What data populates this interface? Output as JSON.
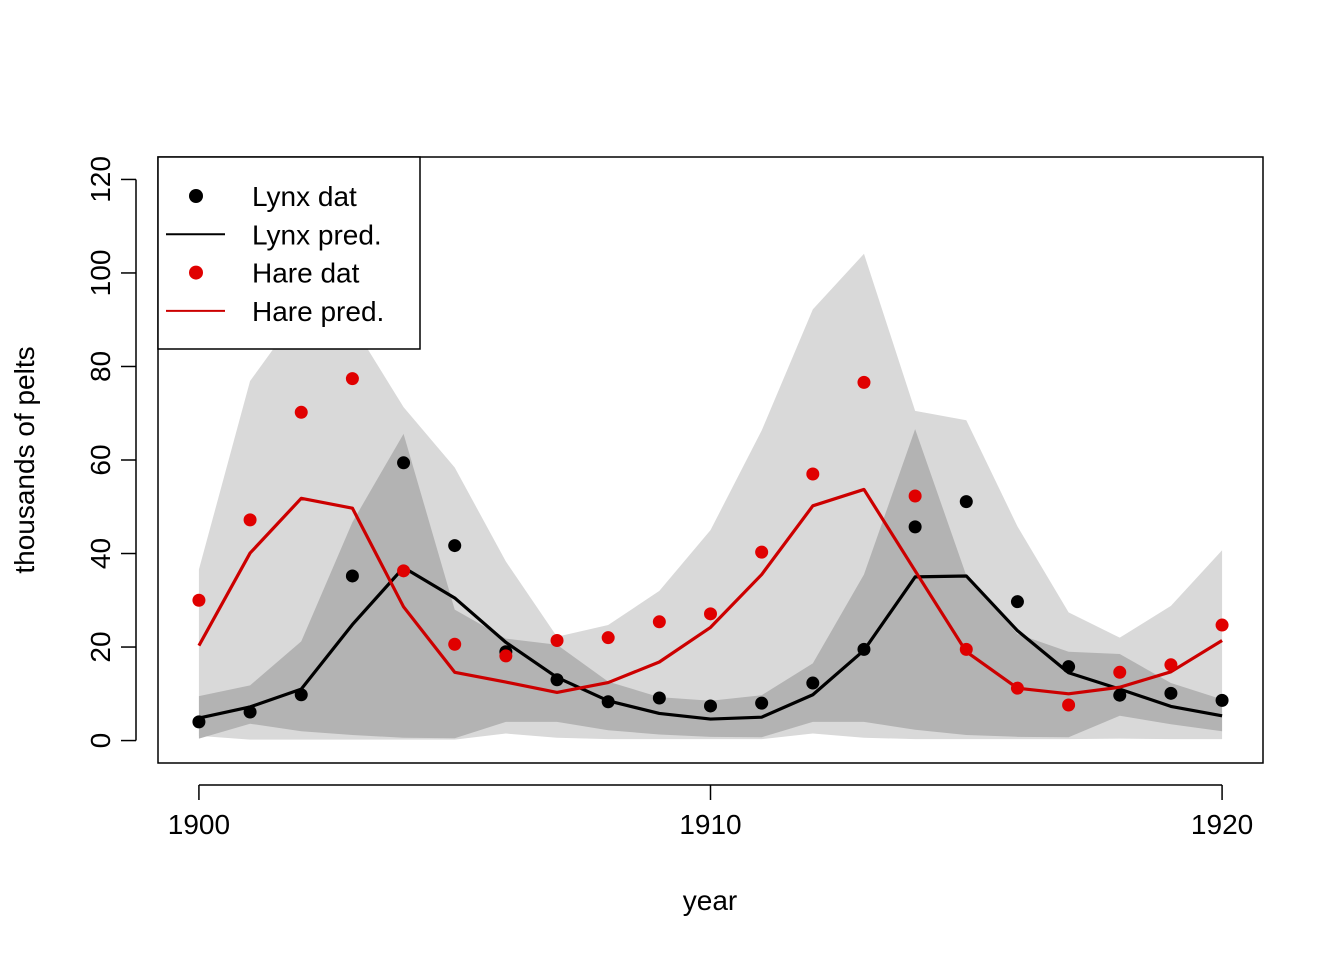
{
  "chart_data": {
    "type": "line",
    "title": "",
    "xlabel": "year",
    "ylabel": "thousands of pelts",
    "xlim": [
      1899.2,
      1920.8
    ],
    "ylim": [
      -4.8,
      124.8
    ],
    "x_ticks": [
      1900,
      1910,
      1920
    ],
    "y_ticks": [
      0,
      20,
      40,
      60,
      80,
      100,
      120
    ],
    "grid": false,
    "legend_position": "top-left",
    "colors": {
      "lynx": "#000000",
      "hare": "#cc0000",
      "band_light": "#d9d9d9",
      "band_dark": "#b3b3b3"
    },
    "x": [
      1900,
      1901,
      1902,
      1903,
      1904,
      1905,
      1906,
      1907,
      1908,
      1909,
      1910,
      1911,
      1912,
      1913,
      1914,
      1915,
      1916,
      1917,
      1918,
      1919,
      1920
    ],
    "series": [
      {
        "name": "Lynx dat",
        "kind": "points",
        "color": "#000000",
        "values": [
          4.0,
          6.1,
          9.8,
          35.2,
          59.4,
          41.7,
          19.0,
          13.0,
          8.3,
          9.1,
          7.4,
          8.0,
          12.3,
          19.5,
          45.7,
          51.1,
          29.7,
          15.8,
          9.7,
          10.1,
          8.6
        ]
      },
      {
        "name": "Lynx pred.",
        "kind": "line",
        "color": "#000000",
        "values": [
          4.8,
          7.2,
          11.0,
          24.8,
          37.0,
          30.5,
          21.0,
          13.5,
          8.5,
          5.8,
          4.6,
          5.0,
          9.8,
          19.3,
          35.0,
          35.2,
          23.5,
          14.5,
          11.0,
          7.3,
          5.3
        ]
      },
      {
        "name": "Hare dat",
        "kind": "points",
        "color": "#e00000",
        "values": [
          30.0,
          47.2,
          70.2,
          77.4,
          36.3,
          20.6,
          18.1,
          21.4,
          22.0,
          25.4,
          27.1,
          40.3,
          57.0,
          76.6,
          52.3,
          19.5,
          11.2,
          7.6,
          14.6,
          16.2,
          24.7
        ]
      },
      {
        "name": "Hare pred.",
        "kind": "line",
        "color": "#cc0000",
        "values": [
          20.3,
          40.1,
          51.8,
          49.7,
          28.6,
          14.6,
          12.5,
          10.3,
          12.4,
          16.8,
          24.2,
          35.5,
          50.2,
          53.7,
          36.3,
          19.0,
          11.2,
          10.0,
          11.4,
          14.7,
          21.4
        ]
      }
    ],
    "bands": [
      {
        "series": "Lynx pred.",
        "color": "#b3b3b3",
        "lower": [
          0.4,
          3.6,
          2.0,
          1.2,
          0.6,
          0.5,
          4.0,
          4.0,
          2.2,
          1.3,
          0.8,
          0.7,
          4.0,
          4.0,
          2.3,
          1.2,
          0.8,
          0.7,
          5.3,
          3.5,
          2.0
        ],
        "upper": [
          9.5,
          11.8,
          21.2,
          46.7,
          65.6,
          28.0,
          21.8,
          20.5,
          12.6,
          9.3,
          8.5,
          9.7,
          16.5,
          35.5,
          66.6,
          35.3,
          22.8,
          19.0,
          18.5,
          12.3,
          8.8
        ]
      },
      {
        "series": "Hare pred.",
        "color": "#d9d9d9",
        "lower": [
          1.0,
          0.2,
          0.2,
          0.2,
          0.2,
          0.2,
          1.5,
          0.6,
          0.3,
          0.3,
          0.3,
          0.3,
          1.5,
          0.6,
          0.3,
          0.3,
          0.3,
          0.3,
          0.4,
          0.3,
          0.3
        ],
        "upper": [
          36.6,
          76.9,
          92.0,
          89.0,
          71.3,
          58.4,
          38.3,
          22.2,
          24.7,
          32.0,
          45.0,
          66.3,
          92.2,
          104.1,
          70.5,
          68.5,
          45.8,
          27.4,
          22.0,
          28.8,
          40.7
        ]
      }
    ],
    "legend": [
      {
        "label": "Lynx dat",
        "symbol": "point",
        "color": "#000000"
      },
      {
        "label": "Lynx pred.",
        "symbol": "line",
        "color": "#000000"
      },
      {
        "label": "Hare dat",
        "symbol": "point",
        "color": "#e00000"
      },
      {
        "label": "Hare pred.",
        "symbol": "line",
        "color": "#cc0000"
      }
    ]
  }
}
